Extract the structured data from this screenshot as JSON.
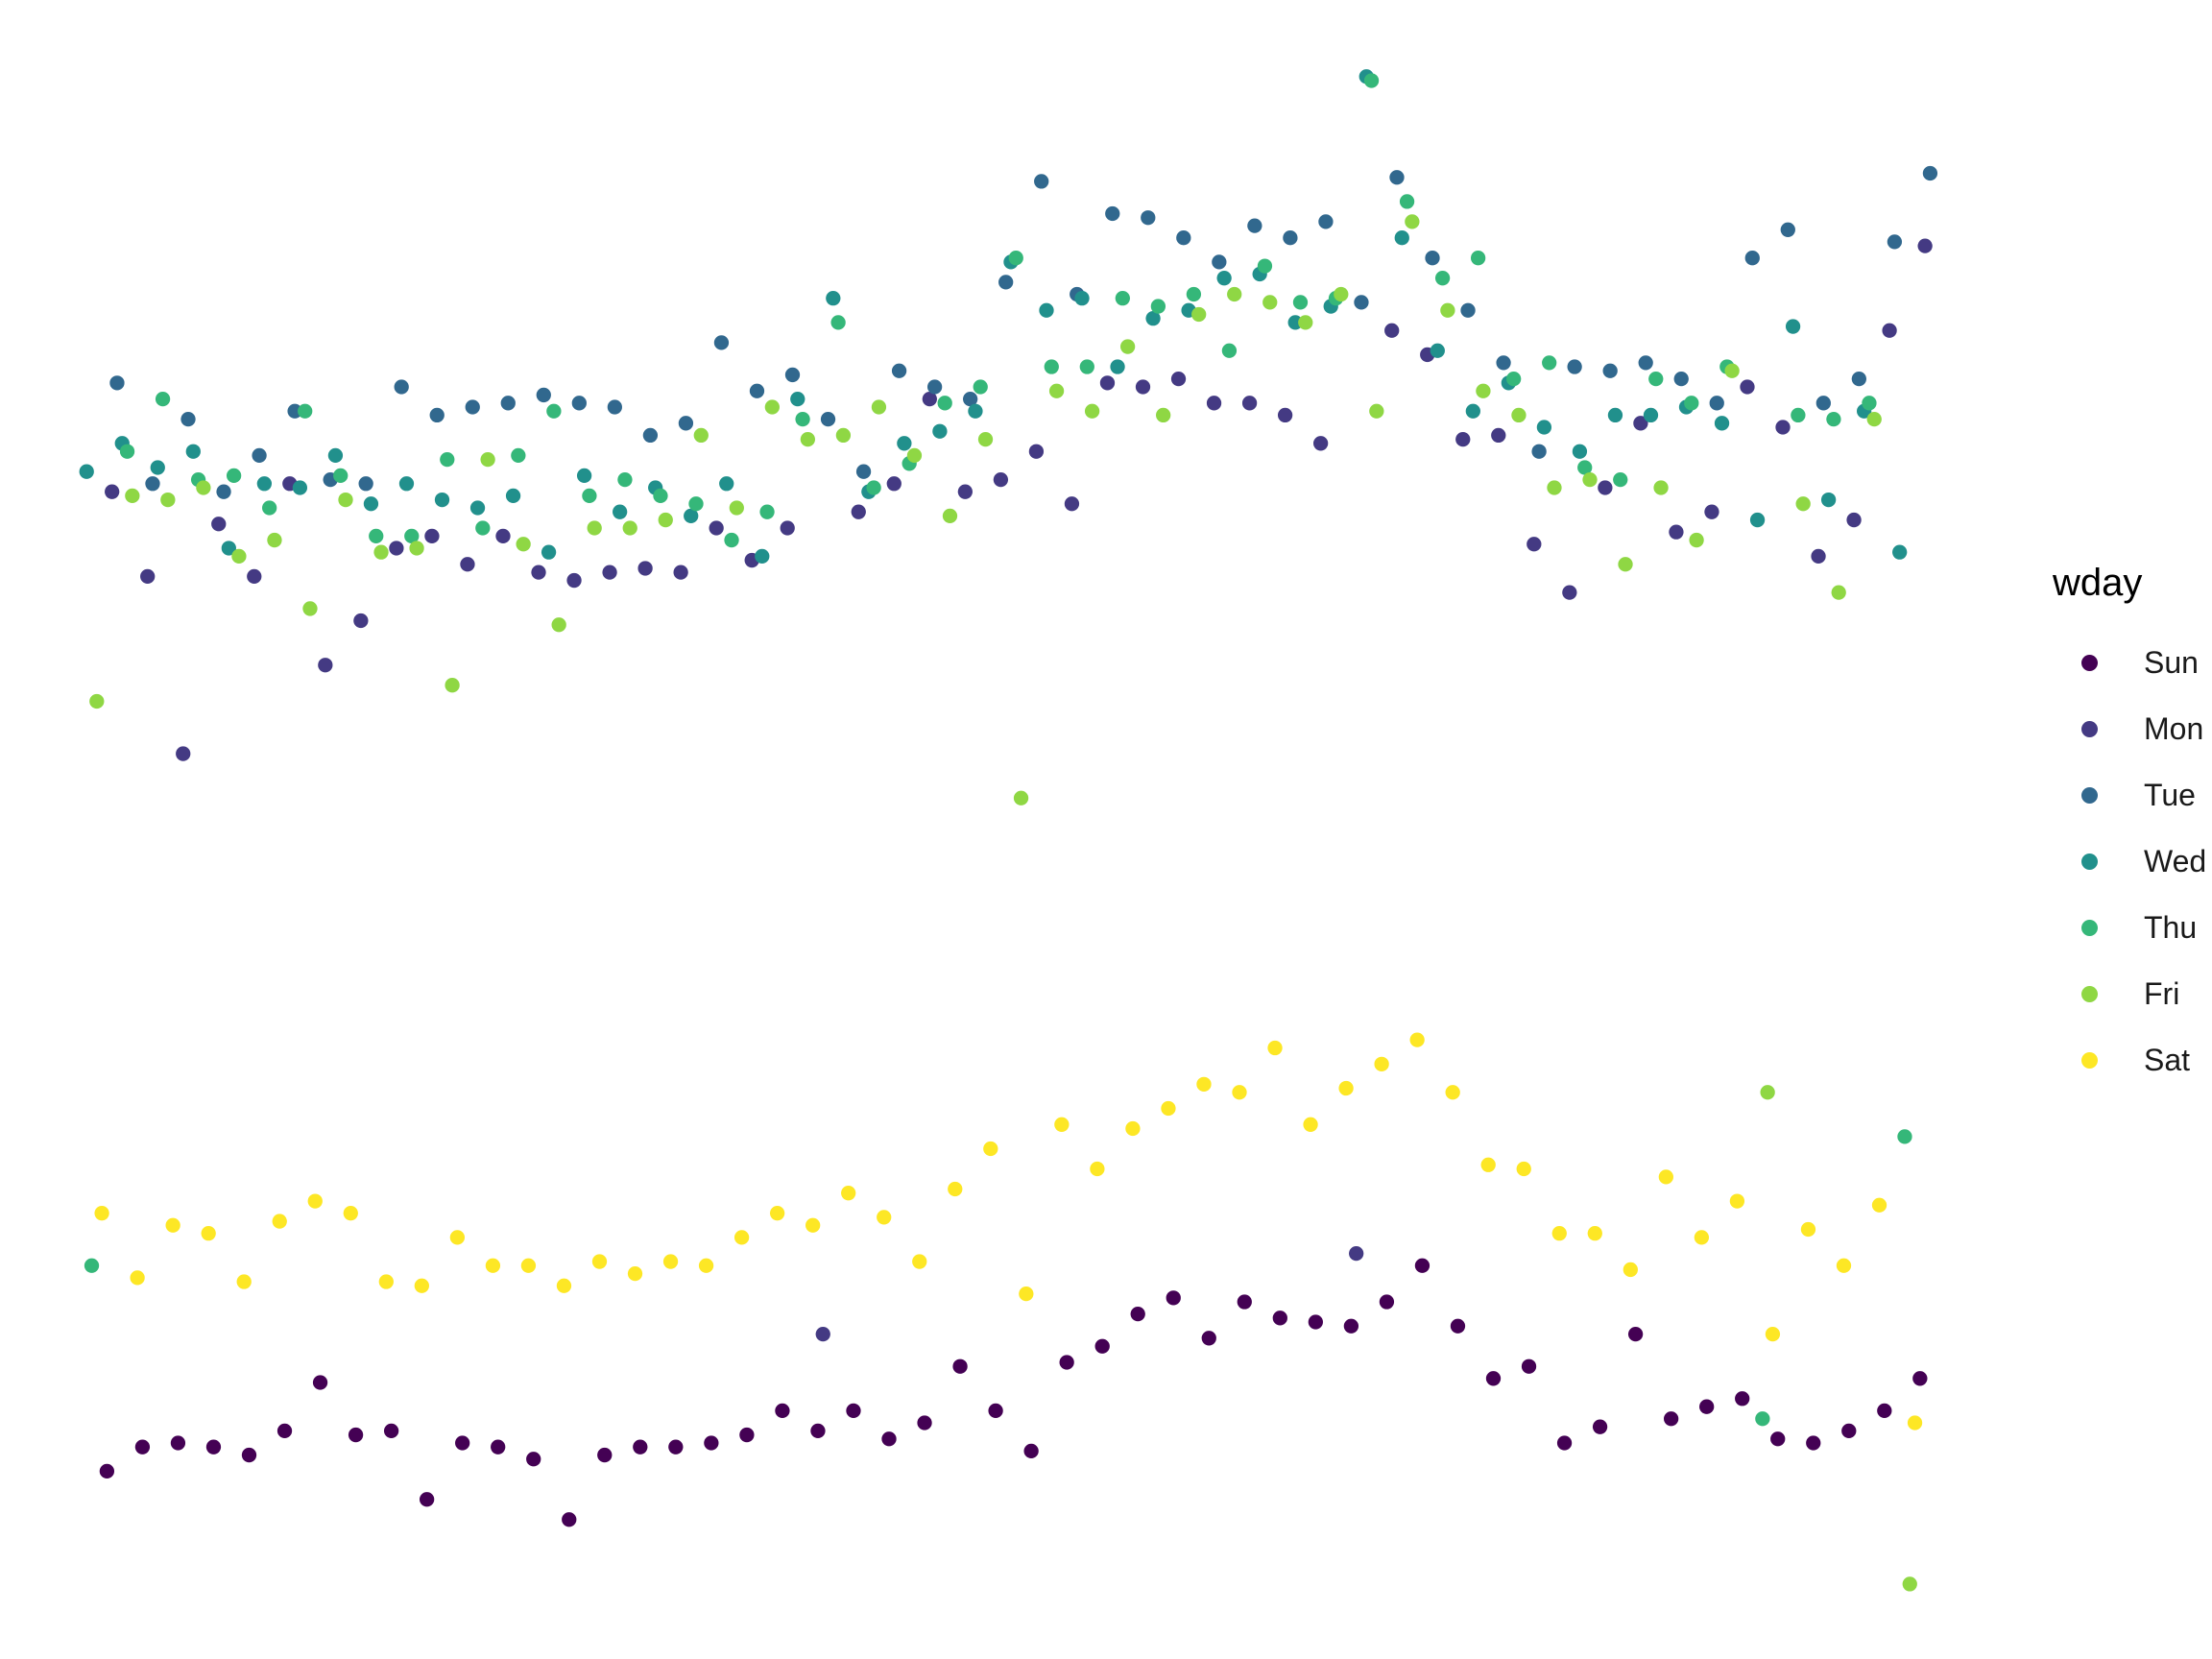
{
  "chart_data": {
    "type": "scatter",
    "title": "",
    "xlabel": "",
    "ylabel": "",
    "axes_visible": false,
    "grid": false,
    "legend": {
      "title": "wday",
      "placement": "right"
    },
    "series": [
      {
        "name": "Sun",
        "color": "#440154",
        "x": [
          6,
          13,
          20,
          27,
          34,
          41,
          48,
          55,
          62,
          69,
          76,
          83,
          90,
          97,
          104,
          111,
          118,
          125,
          132,
          139,
          146,
          153,
          160,
          167,
          174,
          181,
          188,
          195,
          202,
          209,
          216,
          223,
          230,
          237,
          244,
          251,
          258,
          265,
          272,
          279,
          286,
          293,
          300,
          307,
          314,
          321,
          328,
          335,
          342,
          349,
          356,
          363
        ],
        "y": [
          657,
          663,
          664,
          663,
          661,
          667,
          679,
          666,
          667,
          650,
          664,
          663,
          660,
          645,
          661,
          663,
          663,
          664,
          666,
          672,
          667,
          672,
          665,
          669,
          683,
          672,
          662,
          684,
          688,
          696,
          700,
          690,
          699,
          695,
          694,
          693,
          699,
          708,
          693,
          680,
          683,
          664,
          668,
          691,
          670,
          673,
          675,
          665,
          664,
          667,
          672,
          680
        ]
      },
      {
        "name": "Mon",
        "color": "#443A83",
        "x": [
          7,
          14,
          21,
          28,
          35,
          42,
          49,
          56,
          63,
          70,
          77,
          84,
          91,
          98,
          105,
          112,
          119,
          126,
          133,
          140,
          147,
          154,
          161,
          168,
          175,
          182,
          189,
          196,
          203,
          210,
          217,
          224,
          231,
          238,
          245,
          252,
          259,
          266,
          273,
          280,
          287,
          294,
          301,
          308,
          315,
          322,
          329,
          336,
          343,
          350,
          357,
          364
        ],
        "y": [
          900,
          879,
          835,
          892,
          879,
          902,
          857,
          868,
          886,
          889,
          882,
          889,
          880,
          878,
          880,
          881,
          880,
          891,
          883,
          891,
          691,
          895,
          902,
          923,
          900,
          903,
          910,
          897,
          927,
          926,
          928,
          922,
          922,
          919,
          912,
          711,
          940,
          934,
          913,
          914,
          887,
          875,
          901,
          917,
          890,
          895,
          926,
          916,
          884,
          893,
          940,
          961
        ]
      },
      {
        "name": "Tue",
        "color": "#31688E",
        "x": [
          8,
          15,
          22,
          29,
          36,
          43,
          50,
          57,
          64,
          71,
          78,
          85,
          92,
          99,
          106,
          113,
          120,
          127,
          134,
          141,
          148,
          155,
          162,
          169,
          176,
          183,
          190,
          197,
          204,
          211,
          218,
          225,
          232,
          239,
          246,
          253,
          260,
          267,
          274,
          281,
          288,
          295,
          302,
          309,
          316,
          323,
          330,
          337,
          344,
          351,
          358,
          365
        ],
        "y": [
          927,
          902,
          918,
          900,
          909,
          920,
          903,
          902,
          926,
          919,
          921,
          922,
          924,
          922,
          921,
          914,
          917,
          937,
          925,
          929,
          918,
          905,
          930,
          926,
          923,
          952,
          977,
          949,
          969,
          968,
          963,
          957,
          966,
          963,
          967,
          947,
          978,
          958,
          945,
          932,
          910,
          931,
          930,
          932,
          928,
          922,
          958,
          965,
          922,
          928,
          962,
          979
        ]
      },
      {
        "name": "Wed",
        "color": "#21908C",
        "x": [
          2,
          9,
          16,
          23,
          30,
          37,
          44,
          51,
          58,
          65,
          72,
          79,
          86,
          93,
          100,
          107,
          114,
          121,
          128,
          135,
          142,
          149,
          156,
          163,
          170,
          177,
          184,
          191,
          198,
          205,
          212,
          219,
          226,
          233,
          240,
          247,
          254,
          261,
          268,
          275,
          282,
          289,
          296,
          303,
          310,
          317,
          324,
          331,
          338,
          345,
          352,
          359
        ],
        "y": [
          905,
          912,
          906,
          910,
          886,
          902,
          901,
          909,
          897,
          902,
          898,
          896,
          899,
          885,
          904,
          895,
          901,
          894,
          902,
          884,
          923,
          948,
          900,
          912,
          915,
          920,
          957,
          945,
          948,
          931,
          943,
          945,
          953,
          954,
          942,
          946,
          1003,
          963,
          935,
          920,
          927,
          916,
          910,
          919,
          919,
          921,
          917,
          893,
          941,
          898,
          920,
          885
        ]
      },
      {
        "name": "Thu",
        "color": "#35B779",
        "x": [
          3,
          10,
          17,
          24,
          31,
          38,
          45,
          52,
          59,
          66,
          73,
          80,
          87,
          94,
          101,
          108,
          115,
          122,
          129,
          136,
          143,
          150,
          157,
          164,
          171,
          178,
          185,
          192,
          199,
          206,
          213,
          220,
          227,
          234,
          241,
          248,
          255,
          262,
          269,
          276,
          283,
          290,
          297,
          304,
          311,
          318,
          325,
          332,
          339,
          346,
          353,
          360
        ],
        "y": [
          708,
          910,
          923,
          903,
          904,
          896,
          920,
          904,
          889,
          889,
          908,
          891,
          909,
          920,
          899,
          903,
          899,
          897,
          888,
          895,
          918,
          942,
          901,
          907,
          922,
          926,
          958,
          931,
          931,
          948,
          946,
          949,
          935,
          956,
          947,
          948,
          1002,
          972,
          953,
          958,
          928,
          932,
          906,
          903,
          928,
          922,
          931,
          670,
          919,
          918,
          922,
          740
        ]
      },
      {
        "name": "Fri",
        "color": "#8FD744",
        "x": [
          4,
          11,
          18,
          25,
          32,
          39,
          46,
          53,
          60,
          67,
          74,
          81,
          88,
          95,
          102,
          109,
          116,
          123,
          130,
          137,
          144,
          151,
          158,
          165,
          172,
          179,
          186,
          193,
          200,
          207,
          214,
          221,
          228,
          235,
          242,
          249,
          256,
          263,
          270,
          277,
          284,
          291,
          298,
          305,
          312,
          319,
          326,
          333,
          340,
          347,
          354,
          361
        ],
        "y": [
          848,
          899,
          898,
          901,
          884,
          888,
          871,
          898,
          885,
          886,
          852,
          908,
          887,
          867,
          891,
          891,
          893,
          914,
          896,
          921,
          913,
          914,
          921,
          909,
          894,
          913,
          824,
          925,
          920,
          936,
          919,
          944,
          949,
          947,
          942,
          949,
          920,
          967,
          945,
          925,
          919,
          901,
          903,
          882,
          901,
          888,
          930,
          751,
          897,
          875,
          918,
          629
        ]
      },
      {
        "name": "Sat",
        "color": "#FDE725",
        "x": [
          5,
          12,
          19,
          26,
          33,
          40,
          47,
          54,
          61,
          68,
          75,
          82,
          89,
          96,
          103,
          110,
          117,
          124,
          131,
          138,
          145,
          152,
          159,
          166,
          173,
          180,
          187,
          194,
          201,
          208,
          215,
          222,
          229,
          236,
          243,
          250,
          257,
          264,
          271,
          278,
          285,
          292,
          299,
          306,
          313,
          320,
          327,
          334,
          341,
          348,
          355,
          362
        ],
        "y": [
          721,
          705,
          718,
          716,
          704,
          719,
          724,
          721,
          704,
          703,
          715,
          708,
          708,
          703,
          709,
          706,
          709,
          708,
          715,
          721,
          718,
          726,
          720,
          709,
          727,
          737,
          701,
          743,
          732,
          742,
          747,
          753,
          751,
          762,
          743,
          752,
          758,
          764,
          751,
          733,
          732,
          716,
          716,
          707,
          730,
          715,
          724,
          691,
          717,
          708,
          723,
          669
        ]
      }
    ]
  }
}
